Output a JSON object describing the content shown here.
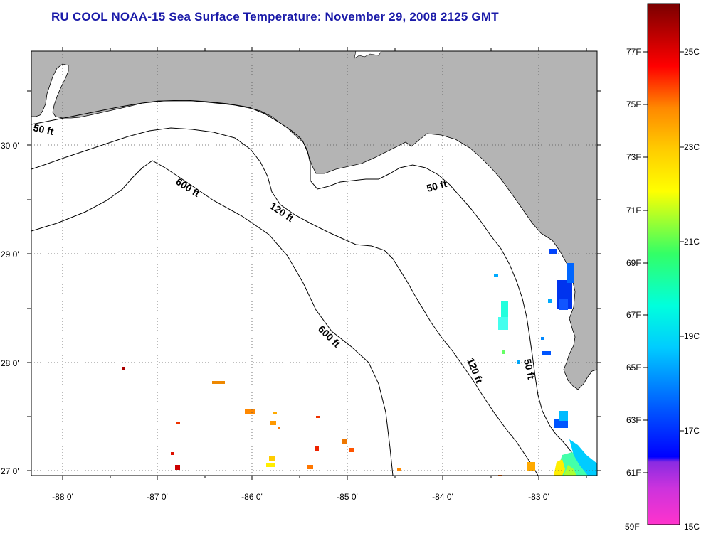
{
  "title": "RU COOL  NOAA-15  Sea Surface Temperature:  November 29, 2008 2125 GMT",
  "map": {
    "lon_ticks": [
      "-88 0'",
      "-87 0'",
      "-86 0'",
      "-85 0'",
      "-84 0'",
      "-83 0'"
    ],
    "lat_ticks": [
      "30 0'",
      "29 0'",
      "28 0'",
      "27 0'"
    ],
    "contour_labels": {
      "c50_west": "50 ft",
      "c600_north": "600 ft",
      "c120_north": "120 ft",
      "c50_east": "50 ft",
      "c600_south": "600 ft",
      "c120_south": "120 ft",
      "c50_south": "50 ft"
    },
    "colors": {
      "land": "#b4b4b4",
      "water": "#ffffff",
      "title": "#1a1aa8"
    }
  },
  "colorbar": {
    "fahrenheit_labels": [
      "77F",
      "75F",
      "73F",
      "71F",
      "69F",
      "67F",
      "65F",
      "63F",
      "61F",
      "59F"
    ],
    "celsius_labels": [
      "25C",
      "23C",
      "21C",
      "19C",
      "17C",
      "15C"
    ]
  }
}
